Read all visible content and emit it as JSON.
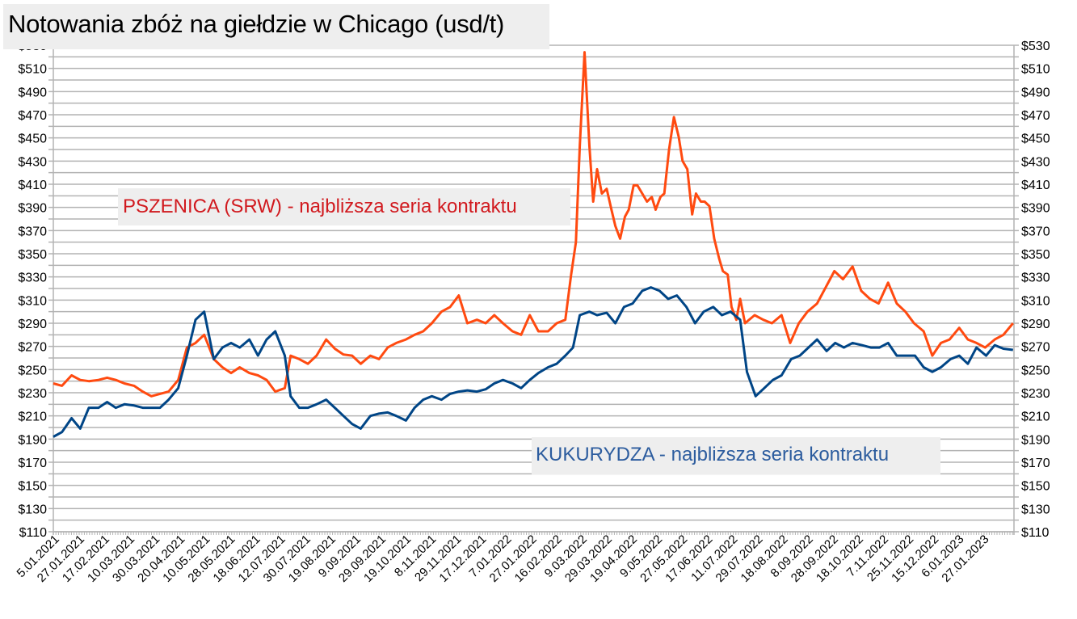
{
  "title": "Notowania zbóż na giełdzie w Chicago (usd/t)",
  "annotations": {
    "wheat": "PSZENICA (SRW) - najbliższa seria kontraktu",
    "corn": "KUKURYDZA - najbliższa seria kontraktu"
  },
  "colors": {
    "wheat": "#ff4a10",
    "corn": "#004586",
    "wheat_label": "#d11a1f",
    "corn_label": "#2c5c9e",
    "grid": "#b3b3b3",
    "label_bg": "#eeeeee"
  },
  "chart_data": {
    "type": "line",
    "title": "Notowania zbóż na giełdzie w Chicago (usd/t)",
    "xlabel": "",
    "ylabel": "usd/t",
    "ylim": [
      110,
      530
    ],
    "y_major_step": 20,
    "y_minor_step": 10,
    "grid": true,
    "legend_position": "inline annotations",
    "y_ticks": [
      "$110",
      "$130",
      "$150",
      "$170",
      "$190",
      "$210",
      "$230",
      "$250",
      "$270",
      "$290",
      "$310",
      "$330",
      "$350",
      "$370",
      "$390",
      "$410",
      "$430",
      "$450",
      "$470",
      "$490",
      "$510",
      "$530"
    ],
    "x_tick_labels": [
      "5.01.2021",
      "27.01.2021",
      "17.02.2021",
      "10.03.2021",
      "30.03.2021",
      "20.04.2021",
      "10.05.2021",
      "28.05.2021",
      "18.06.2021",
      "12.07.2021",
      "30.07.2021",
      "19.08.2021",
      "9.09.2021",
      "29.09.2021",
      "19.10.2021",
      "8.11.2021",
      "29.11.2021",
      "17.12.2021",
      "7.01.2022",
      "27.01.2022",
      "16.02.2022",
      "9.03.2022",
      "29.03.2022",
      "19.04.2022",
      "9.05.2022",
      "27.05.2022",
      "17.06.2022",
      "11.07.2022",
      "29.07.2022",
      "18.08.2022",
      "8.09.2022",
      "28.09.2022",
      "18.10.2022",
      "7.11.2022",
      "25.11.2022",
      "15.12.2022",
      "6.01.2023",
      "27.01.2023"
    ],
    "x_range_note": "x is position fraction 0..1 across 5.01.2021 to early Feb 2023",
    "series": [
      {
        "name": "PSZENICA (SRW) - najbliższa seria kontraktu",
        "color": "#ff4a10",
        "points": [
          [
            0.0,
            238
          ],
          [
            0.009,
            236
          ],
          [
            0.019,
            245
          ],
          [
            0.028,
            241
          ],
          [
            0.037,
            240
          ],
          [
            0.047,
            241
          ],
          [
            0.056,
            243
          ],
          [
            0.065,
            241
          ],
          [
            0.074,
            238
          ],
          [
            0.084,
            236
          ],
          [
            0.093,
            231
          ],
          [
            0.102,
            227
          ],
          [
            0.111,
            229
          ],
          [
            0.12,
            231
          ],
          [
            0.13,
            241
          ],
          [
            0.139,
            269
          ],
          [
            0.148,
            273
          ],
          [
            0.157,
            280
          ],
          [
            0.167,
            259
          ],
          [
            0.176,
            252
          ],
          [
            0.185,
            247
          ],
          [
            0.194,
            252
          ],
          [
            0.204,
            247
          ],
          [
            0.213,
            245
          ],
          [
            0.222,
            241
          ],
          [
            0.231,
            231
          ],
          [
            0.241,
            234
          ],
          [
            0.247,
            262
          ],
          [
            0.256,
            259
          ],
          [
            0.265,
            255
          ],
          [
            0.274,
            262
          ],
          [
            0.284,
            276
          ],
          [
            0.293,
            268
          ],
          [
            0.302,
            263
          ],
          [
            0.311,
            262
          ],
          [
            0.32,
            255
          ],
          [
            0.33,
            262
          ],
          [
            0.339,
            259
          ],
          [
            0.348,
            269
          ],
          [
            0.357,
            273
          ],
          [
            0.367,
            276
          ],
          [
            0.376,
            280
          ],
          [
            0.385,
            283
          ],
          [
            0.394,
            290
          ],
          [
            0.404,
            300
          ],
          [
            0.413,
            304
          ],
          [
            0.422,
            314
          ],
          [
            0.431,
            290
          ],
          [
            0.441,
            293
          ],
          [
            0.45,
            290
          ],
          [
            0.459,
            297
          ],
          [
            0.468,
            290
          ],
          [
            0.478,
            283
          ],
          [
            0.487,
            280
          ],
          [
            0.496,
            297
          ],
          [
            0.505,
            283
          ],
          [
            0.515,
            283
          ],
          [
            0.524,
            290
          ],
          [
            0.533,
            293
          ],
          [
            0.539,
            332
          ],
          [
            0.544,
            360
          ],
          [
            0.548,
            443
          ],
          [
            0.553,
            524
          ],
          [
            0.558,
            443
          ],
          [
            0.562,
            395
          ],
          [
            0.566,
            423
          ],
          [
            0.571,
            402
          ],
          [
            0.576,
            406
          ],
          [
            0.581,
            388
          ],
          [
            0.585,
            374
          ],
          [
            0.59,
            363
          ],
          [
            0.595,
            382
          ],
          [
            0.599,
            388
          ],
          [
            0.604,
            409
          ],
          [
            0.608,
            409
          ],
          [
            0.613,
            402
          ],
          [
            0.618,
            395
          ],
          [
            0.623,
            399
          ],
          [
            0.627,
            388
          ],
          [
            0.632,
            399
          ],
          [
            0.636,
            402
          ],
          [
            0.641,
            440
          ],
          [
            0.646,
            468
          ],
          [
            0.651,
            451
          ],
          [
            0.655,
            430
          ],
          [
            0.66,
            423
          ],
          [
            0.665,
            384
          ],
          [
            0.669,
            402
          ],
          [
            0.674,
            395
          ],
          [
            0.678,
            395
          ],
          [
            0.683,
            391
          ],
          [
            0.688,
            363
          ],
          [
            0.693,
            346
          ],
          [
            0.697,
            335
          ],
          [
            0.702,
            332
          ],
          [
            0.706,
            304
          ],
          [
            0.711,
            293
          ],
          [
            0.715,
            311
          ],
          [
            0.72,
            290
          ],
          [
            0.73,
            297
          ],
          [
            0.739,
            293
          ],
          [
            0.748,
            290
          ],
          [
            0.758,
            297
          ],
          [
            0.767,
            273
          ],
          [
            0.776,
            290
          ],
          [
            0.785,
            300
          ],
          [
            0.795,
            307
          ],
          [
            0.804,
            321
          ],
          [
            0.813,
            335
          ],
          [
            0.822,
            328
          ],
          [
            0.832,
            339
          ],
          [
            0.841,
            318
          ],
          [
            0.85,
            311
          ],
          [
            0.859,
            307
          ],
          [
            0.869,
            325
          ],
          [
            0.878,
            307
          ],
          [
            0.887,
            300
          ],
          [
            0.896,
            290
          ],
          [
            0.906,
            283
          ],
          [
            0.915,
            262
          ],
          [
            0.924,
            273
          ],
          [
            0.933,
            276
          ],
          [
            0.943,
            286
          ],
          [
            0.952,
            276
          ],
          [
            0.961,
            273
          ],
          [
            0.97,
            269
          ],
          [
            0.98,
            276
          ],
          [
            0.989,
            280
          ],
          [
            0.999,
            290
          ]
        ]
      },
      {
        "name": "KUKURYDZA - najbliższa seria kontraktu",
        "color": "#004586",
        "points": [
          [
            0.0,
            192
          ],
          [
            0.009,
            196
          ],
          [
            0.019,
            208
          ],
          [
            0.028,
            199
          ],
          [
            0.037,
            217
          ],
          [
            0.047,
            217
          ],
          [
            0.056,
            222
          ],
          [
            0.065,
            217
          ],
          [
            0.074,
            220
          ],
          [
            0.084,
            219
          ],
          [
            0.093,
            217
          ],
          [
            0.102,
            217
          ],
          [
            0.111,
            217
          ],
          [
            0.12,
            224
          ],
          [
            0.13,
            234
          ],
          [
            0.139,
            262
          ],
          [
            0.148,
            293
          ],
          [
            0.157,
            300
          ],
          [
            0.167,
            259
          ],
          [
            0.176,
            269
          ],
          [
            0.185,
            273
          ],
          [
            0.194,
            269
          ],
          [
            0.204,
            276
          ],
          [
            0.213,
            262
          ],
          [
            0.222,
            276
          ],
          [
            0.231,
            283
          ],
          [
            0.241,
            262
          ],
          [
            0.247,
            227
          ],
          [
            0.256,
            217
          ],
          [
            0.265,
            217
          ],
          [
            0.274,
            220
          ],
          [
            0.284,
            224
          ],
          [
            0.293,
            217
          ],
          [
            0.302,
            210
          ],
          [
            0.311,
            203
          ],
          [
            0.32,
            199
          ],
          [
            0.33,
            210
          ],
          [
            0.339,
            212
          ],
          [
            0.348,
            213
          ],
          [
            0.357,
            210
          ],
          [
            0.367,
            206
          ],
          [
            0.376,
            217
          ],
          [
            0.385,
            224
          ],
          [
            0.394,
            227
          ],
          [
            0.404,
            224
          ],
          [
            0.413,
            229
          ],
          [
            0.422,
            231
          ],
          [
            0.431,
            232
          ],
          [
            0.441,
            231
          ],
          [
            0.45,
            233
          ],
          [
            0.459,
            238
          ],
          [
            0.468,
            241
          ],
          [
            0.478,
            238
          ],
          [
            0.487,
            234
          ],
          [
            0.496,
            241
          ],
          [
            0.505,
            247
          ],
          [
            0.515,
            252
          ],
          [
            0.524,
            255
          ],
          [
            0.533,
            262
          ],
          [
            0.541,
            269
          ],
          [
            0.548,
            297
          ],
          [
            0.558,
            300
          ],
          [
            0.566,
            297
          ],
          [
            0.576,
            299
          ],
          [
            0.585,
            290
          ],
          [
            0.594,
            304
          ],
          [
            0.603,
            307
          ],
          [
            0.613,
            318
          ],
          [
            0.622,
            321
          ],
          [
            0.631,
            318
          ],
          [
            0.64,
            311
          ],
          [
            0.649,
            314
          ],
          [
            0.659,
            304
          ],
          [
            0.668,
            290
          ],
          [
            0.677,
            300
          ],
          [
            0.687,
            304
          ],
          [
            0.696,
            297
          ],
          [
            0.705,
            300
          ],
          [
            0.715,
            293
          ],
          [
            0.722,
            248
          ],
          [
            0.731,
            227
          ],
          [
            0.74,
            234
          ],
          [
            0.749,
            241
          ],
          [
            0.758,
            245
          ],
          [
            0.768,
            259
          ],
          [
            0.777,
            262
          ],
          [
            0.786,
            269
          ],
          [
            0.795,
            276
          ],
          [
            0.805,
            266
          ],
          [
            0.814,
            273
          ],
          [
            0.823,
            269
          ],
          [
            0.832,
            273
          ],
          [
            0.842,
            271
          ],
          [
            0.851,
            269
          ],
          [
            0.86,
            269
          ],
          [
            0.869,
            273
          ],
          [
            0.878,
            262
          ],
          [
            0.888,
            262
          ],
          [
            0.897,
            262
          ],
          [
            0.906,
            252
          ],
          [
            0.915,
            248
          ],
          [
            0.924,
            252
          ],
          [
            0.934,
            259
          ],
          [
            0.943,
            262
          ],
          [
            0.952,
            255
          ],
          [
            0.961,
            269
          ],
          [
            0.971,
            262
          ],
          [
            0.98,
            271
          ],
          [
            0.989,
            268
          ],
          [
            0.999,
            267
          ]
        ]
      }
    ]
  }
}
